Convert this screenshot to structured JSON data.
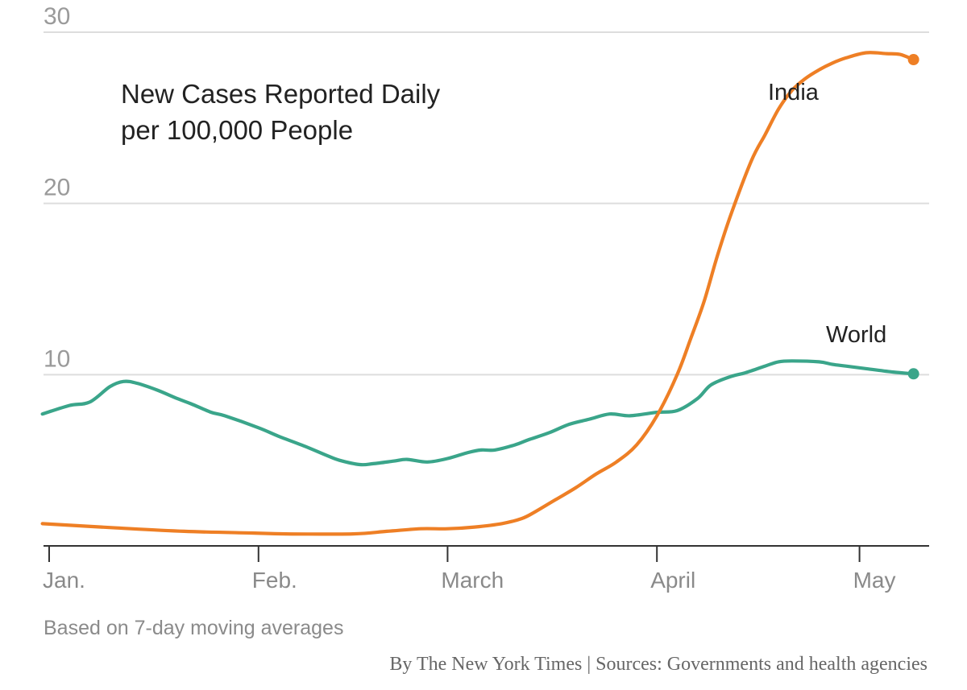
{
  "chart_data": {
    "type": "line",
    "title": "New Cases Reported Daily",
    "subtitle": "per 100,000 People",
    "xlabel": "",
    "ylabel": "",
    "ylim": [
      0,
      30
    ],
    "grid": true,
    "y_ticks": [
      "10",
      "20",
      "30"
    ],
    "x_ticks": [
      "Jan.",
      "Feb.",
      "March",
      "April",
      "May"
    ],
    "x_tick_days": [
      0,
      31,
      59,
      90,
      120
    ],
    "series": [
      {
        "name": "World",
        "color": "#3aa58a",
        "end_marker": true,
        "x": [
          -1,
          3,
          6,
          9,
          11,
          13,
          16,
          19,
          21,
          24,
          26,
          31,
          34,
          38,
          41,
          43,
          46,
          48,
          51,
          53,
          56,
          59,
          62,
          64,
          66,
          69,
          71,
          74,
          77,
          80,
          83,
          86,
          90,
          93,
          96,
          98,
          101,
          103,
          106,
          108,
          110,
          114,
          116,
          118,
          121,
          125,
          128
        ],
        "y": [
          7.7,
          8.2,
          8.4,
          9.3,
          9.6,
          9.5,
          9.1,
          8.6,
          8.3,
          7.8,
          7.6,
          6.9,
          6.4,
          5.8,
          5.3,
          5.0,
          4.75,
          4.8,
          4.95,
          5.05,
          4.9,
          5.1,
          5.45,
          5.6,
          5.6,
          5.9,
          6.2,
          6.6,
          7.1,
          7.4,
          7.7,
          7.6,
          7.8,
          7.9,
          8.6,
          9.4,
          9.9,
          10.1,
          10.5,
          10.75,
          10.8,
          10.75,
          10.6,
          10.5,
          10.35,
          10.15,
          10.05
        ]
      },
      {
        "name": "India",
        "color": "#ee7f25",
        "end_marker": true,
        "x": [
          -1,
          10,
          20,
          30,
          35,
          45,
          50,
          55,
          59,
          63,
          67,
          70,
          72,
          75,
          78,
          81,
          84,
          87,
          90,
          93,
          95,
          97,
          99,
          101,
          104,
          106,
          108,
          110,
          112,
          114,
          116,
          118,
          121,
          124,
          126,
          128
        ],
        "y": [
          1.3,
          1.05,
          0.85,
          0.75,
          0.7,
          0.7,
          0.85,
          1.0,
          1.0,
          1.1,
          1.3,
          1.6,
          2.0,
          2.7,
          3.4,
          4.2,
          4.9,
          5.9,
          7.6,
          10.0,
          12.1,
          14.3,
          17.0,
          19.4,
          22.5,
          24.0,
          25.5,
          26.6,
          27.3,
          27.8,
          28.2,
          28.5,
          28.8,
          28.75,
          28.7,
          28.4
        ]
      }
    ],
    "note": "Based on 7-day moving averages",
    "credit": "By The New York Times | Sources: Governments and health agencies"
  }
}
